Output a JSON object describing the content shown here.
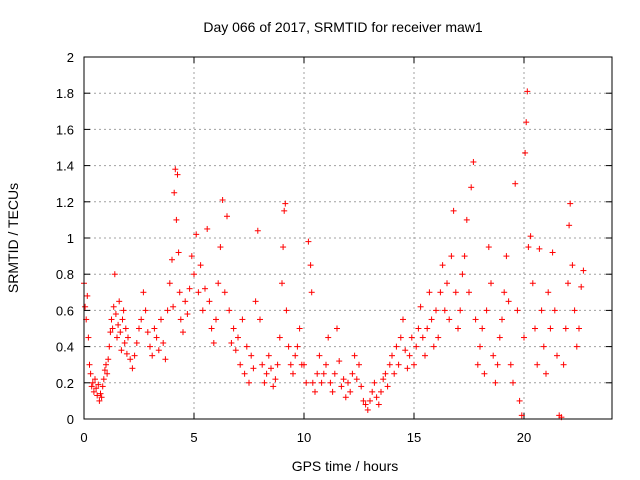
{
  "chart_data": {
    "type": "scatter",
    "title": "Day 066 of 2017, SRMTID for receiver maw1",
    "xlabel": "GPS time / hours",
    "ylabel": "SRMTID / TECUs",
    "xlim": [
      0,
      24
    ],
    "ylim": [
      0,
      2
    ],
    "xticks": [
      0,
      5,
      10,
      15,
      20
    ],
    "xtick_labels": [
      "0",
      "5",
      "10",
      "15",
      "20"
    ],
    "yticks": [
      0,
      0.2,
      0.4,
      0.6,
      0.8,
      1.0,
      1.2,
      1.4,
      1.6,
      1.8,
      2.0
    ],
    "ytick_labels": [
      "0",
      "0.2",
      "0.4",
      "0.6",
      "0.8",
      "1",
      "1.2",
      "1.4",
      "1.6",
      "1.8",
      "2"
    ],
    "grid": true,
    "marker": "+",
    "color": "#ff0000",
    "series": [
      {
        "name": "maw1",
        "points": [
          [
            0.0,
            0.75
          ],
          [
            0.05,
            0.62
          ],
          [
            0.1,
            0.55
          ],
          [
            0.15,
            0.68
          ],
          [
            0.2,
            0.45
          ],
          [
            0.25,
            0.3
          ],
          [
            0.3,
            0.25
          ],
          [
            0.35,
            0.18
          ],
          [
            0.4,
            0.2
          ],
          [
            0.45,
            0.15
          ],
          [
            0.5,
            0.22
          ],
          [
            0.55,
            0.17
          ],
          [
            0.6,
            0.13
          ],
          [
            0.65,
            0.19
          ],
          [
            0.7,
            0.1
          ],
          [
            0.75,
            0.14
          ],
          [
            0.8,
            0.12
          ],
          [
            0.85,
            0.18
          ],
          [
            0.9,
            0.22
          ],
          [
            0.95,
            0.27
          ],
          [
            1.0,
            0.3
          ],
          [
            1.05,
            0.25
          ],
          [
            1.1,
            0.33
          ],
          [
            1.15,
            0.4
          ],
          [
            1.2,
            0.48
          ],
          [
            1.25,
            0.55
          ],
          [
            1.3,
            0.5
          ],
          [
            1.35,
            0.62
          ],
          [
            1.4,
            0.8
          ],
          [
            1.45,
            0.58
          ],
          [
            1.5,
            0.45
          ],
          [
            1.55,
            0.52
          ],
          [
            1.6,
            0.65
          ],
          [
            1.65,
            0.48
          ],
          [
            1.7,
            0.38
          ],
          [
            1.75,
            0.55
          ],
          [
            1.8,
            0.6
          ],
          [
            1.85,
            0.42
          ],
          [
            1.9,
            0.5
          ],
          [
            1.95,
            0.36
          ],
          [
            2.0,
            0.45
          ],
          [
            2.1,
            0.33
          ],
          [
            2.2,
            0.28
          ],
          [
            2.3,
            0.35
          ],
          [
            2.4,
            0.42
          ],
          [
            2.5,
            0.5
          ],
          [
            2.6,
            0.55
          ],
          [
            2.7,
            0.7
          ],
          [
            2.8,
            0.6
          ],
          [
            2.9,
            0.48
          ],
          [
            3.0,
            0.4
          ],
          [
            3.1,
            0.35
          ],
          [
            3.2,
            0.5
          ],
          [
            3.3,
            0.45
          ],
          [
            3.4,
            0.38
          ],
          [
            3.5,
            0.55
          ],
          [
            3.6,
            0.42
          ],
          [
            3.7,
            0.33
          ],
          [
            3.8,
            0.6
          ],
          [
            3.9,
            0.75
          ],
          [
            4.0,
            0.88
          ],
          [
            4.05,
            0.62
          ],
          [
            4.1,
            1.25
          ],
          [
            4.15,
            1.38
          ],
          [
            4.2,
            1.1
          ],
          [
            4.25,
            1.35
          ],
          [
            4.3,
            0.92
          ],
          [
            4.35,
            0.7
          ],
          [
            4.4,
            0.55
          ],
          [
            4.5,
            0.48
          ],
          [
            4.6,
            0.65
          ],
          [
            4.7,
            0.58
          ],
          [
            4.8,
            0.72
          ],
          [
            4.9,
            0.9
          ],
          [
            5.0,
            0.8
          ],
          [
            5.1,
            1.02
          ],
          [
            5.2,
            0.7
          ],
          [
            5.3,
            0.85
          ],
          [
            5.4,
            0.6
          ],
          [
            5.5,
            0.72
          ],
          [
            5.6,
            1.05
          ],
          [
            5.7,
            0.65
          ],
          [
            5.8,
            0.5
          ],
          [
            5.9,
            0.42
          ],
          [
            6.0,
            0.55
          ],
          [
            6.1,
            0.75
          ],
          [
            6.2,
            0.95
          ],
          [
            6.3,
            1.21
          ],
          [
            6.4,
            0.7
          ],
          [
            6.5,
            1.12
          ],
          [
            6.6,
            0.6
          ],
          [
            6.7,
            0.42
          ],
          [
            6.8,
            0.5
          ],
          [
            6.9,
            0.38
          ],
          [
            7.0,
            0.45
          ],
          [
            7.1,
            0.3
          ],
          [
            7.2,
            0.55
          ],
          [
            7.3,
            0.25
          ],
          [
            7.4,
            0.4
          ],
          [
            7.5,
            0.2
          ],
          [
            7.6,
            0.35
          ],
          [
            7.7,
            0.28
          ],
          [
            7.8,
            0.65
          ],
          [
            7.9,
            1.04
          ],
          [
            8.0,
            0.55
          ],
          [
            8.1,
            0.3
          ],
          [
            8.2,
            0.2
          ],
          [
            8.3,
            0.25
          ],
          [
            8.4,
            0.35
          ],
          [
            8.5,
            0.28
          ],
          [
            8.6,
            0.18
          ],
          [
            8.7,
            0.22
          ],
          [
            8.8,
            0.3
          ],
          [
            8.9,
            0.45
          ],
          [
            9.0,
            0.75
          ],
          [
            9.05,
            0.95
          ],
          [
            9.1,
            1.15
          ],
          [
            9.15,
            1.19
          ],
          [
            9.2,
            0.6
          ],
          [
            9.3,
            0.4
          ],
          [
            9.4,
            0.3
          ],
          [
            9.5,
            0.25
          ],
          [
            9.6,
            0.35
          ],
          [
            9.7,
            0.4
          ],
          [
            9.8,
            0.5
          ],
          [
            9.9,
            0.3
          ],
          [
            10.0,
            0.3
          ],
          [
            10.1,
            0.2
          ],
          [
            10.2,
            0.98
          ],
          [
            10.3,
            0.85
          ],
          [
            10.35,
            0.7
          ],
          [
            10.4,
            0.2
          ],
          [
            10.5,
            0.15
          ],
          [
            10.6,
            0.25
          ],
          [
            10.7,
            0.35
          ],
          [
            10.8,
            0.2
          ],
          [
            10.9,
            0.25
          ],
          [
            11.0,
            0.3
          ],
          [
            11.1,
            0.45
          ],
          [
            11.2,
            0.2
          ],
          [
            11.3,
            0.15
          ],
          [
            11.4,
            0.25
          ],
          [
            11.5,
            0.5
          ],
          [
            11.6,
            0.32
          ],
          [
            11.7,
            0.18
          ],
          [
            11.8,
            0.22
          ],
          [
            11.9,
            0.12
          ],
          [
            12.0,
            0.2
          ],
          [
            12.1,
            0.15
          ],
          [
            12.2,
            0.25
          ],
          [
            12.3,
            0.35
          ],
          [
            12.4,
            0.22
          ],
          [
            12.5,
            0.3
          ],
          [
            12.6,
            0.18
          ],
          [
            12.7,
            0.1
          ],
          [
            12.8,
            0.08
          ],
          [
            12.9,
            0.05
          ],
          [
            13.0,
            0.1
          ],
          [
            13.1,
            0.15
          ],
          [
            13.2,
            0.2
          ],
          [
            13.3,
            0.12
          ],
          [
            13.4,
            0.08
          ],
          [
            13.5,
            0.15
          ],
          [
            13.6,
            0.22
          ],
          [
            13.7,
            0.25
          ],
          [
            13.8,
            0.18
          ],
          [
            13.9,
            0.3
          ],
          [
            14.0,
            0.35
          ],
          [
            14.1,
            0.25
          ],
          [
            14.2,
            0.4
          ],
          [
            14.3,
            0.3
          ],
          [
            14.4,
            0.45
          ],
          [
            14.5,
            0.55
          ],
          [
            14.6,
            0.38
          ],
          [
            14.7,
            0.28
          ],
          [
            14.8,
            0.35
          ],
          [
            14.9,
            0.45
          ],
          [
            15.0,
            0.3
          ],
          [
            15.1,
            0.4
          ],
          [
            15.2,
            0.5
          ],
          [
            15.3,
            0.62
          ],
          [
            15.4,
            0.45
          ],
          [
            15.5,
            0.35
          ],
          [
            15.6,
            0.5
          ],
          [
            15.7,
            0.7
          ],
          [
            15.8,
            0.55
          ],
          [
            15.9,
            0.4
          ],
          [
            16.0,
            0.6
          ],
          [
            16.1,
            0.45
          ],
          [
            16.2,
            0.7
          ],
          [
            16.3,
            0.85
          ],
          [
            16.4,
            0.6
          ],
          [
            16.5,
            0.75
          ],
          [
            16.6,
            0.55
          ],
          [
            16.7,
            0.9
          ],
          [
            16.8,
            1.15
          ],
          [
            16.9,
            0.7
          ],
          [
            17.0,
            0.5
          ],
          [
            17.1,
            0.6
          ],
          [
            17.2,
            0.8
          ],
          [
            17.3,
            0.9
          ],
          [
            17.4,
            1.1
          ],
          [
            17.5,
            0.7
          ],
          [
            17.6,
            1.28
          ],
          [
            17.7,
            1.42
          ],
          [
            17.8,
            0.55
          ],
          [
            17.9,
            0.3
          ],
          [
            18.0,
            0.4
          ],
          [
            18.1,
            0.5
          ],
          [
            18.2,
            0.25
          ],
          [
            18.3,
            0.6
          ],
          [
            18.4,
            0.95
          ],
          [
            18.5,
            0.75
          ],
          [
            18.6,
            0.35
          ],
          [
            18.7,
            0.2
          ],
          [
            18.8,
            0.3
          ],
          [
            18.9,
            0.45
          ],
          [
            19.0,
            0.55
          ],
          [
            19.1,
            0.7
          ],
          [
            19.2,
            0.9
          ],
          [
            19.3,
            0.65
          ],
          [
            19.4,
            0.3
          ],
          [
            19.5,
            0.2
          ],
          [
            19.6,
            1.3
          ],
          [
            19.7,
            0.6
          ],
          [
            19.8,
            0.1
          ],
          [
            19.9,
            0.02
          ],
          [
            20.0,
            0.45
          ],
          [
            20.05,
            1.47
          ],
          [
            20.1,
            1.64
          ],
          [
            20.15,
            1.81
          ],
          [
            20.2,
            0.95
          ],
          [
            20.3,
            1.01
          ],
          [
            20.4,
            0.75
          ],
          [
            20.5,
            0.5
          ],
          [
            20.6,
            0.3
          ],
          [
            20.7,
            0.94
          ],
          [
            20.8,
            0.6
          ],
          [
            20.9,
            0.4
          ],
          [
            21.0,
            0.25
          ],
          [
            21.1,
            0.7
          ],
          [
            21.2,
            0.5
          ],
          [
            21.3,
            0.92
          ],
          [
            21.4,
            0.6
          ],
          [
            21.5,
            0.35
          ],
          [
            21.6,
            0.02
          ],
          [
            21.7,
            0.01
          ],
          [
            21.8,
            0.3
          ],
          [
            21.9,
            0.5
          ],
          [
            22.0,
            0.75
          ],
          [
            22.05,
            1.07
          ],
          [
            22.1,
            1.19
          ],
          [
            22.2,
            0.85
          ],
          [
            22.3,
            0.6
          ],
          [
            22.4,
            0.4
          ],
          [
            22.5,
            0.5
          ],
          [
            22.6,
            0.73
          ],
          [
            22.7,
            0.82
          ]
        ]
      }
    ]
  }
}
